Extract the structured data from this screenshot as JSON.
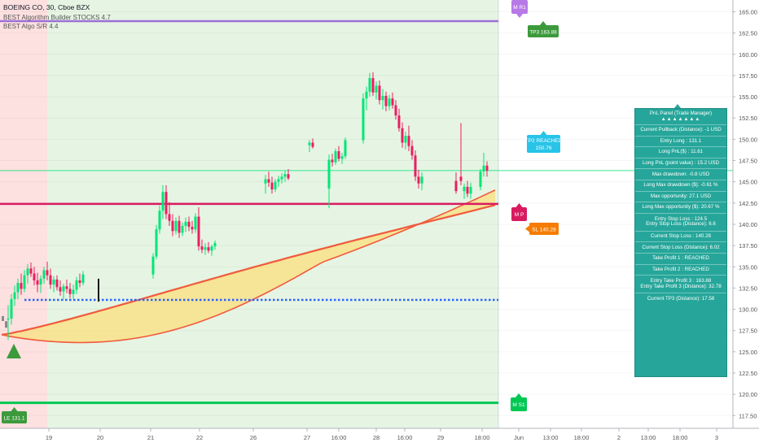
{
  "header": {
    "symbol_line": "BOEING CO, 30, Cboe BZX",
    "study_1": "BEST Algorithm Builder STOCKS 4.7",
    "study_2": "BEST Algo S/R 4.4"
  },
  "colors": {
    "bull": "#00e676",
    "bear": "#e91e63",
    "panel": "#26a69a",
    "cloud": "#f8e08a",
    "cloud_edge": "#f05a3c",
    "r1": "#9c6fd6",
    "pivot": "#d81b60",
    "s1": "#00c853",
    "entry_dots": "#2962ff",
    "price_line": "#00e676",
    "bg_green": "#e6f4e3",
    "bg_red": "#fde0e0"
  },
  "chart_data": {
    "type": "candlestick",
    "symbol": "BOEING CO",
    "interval": "30",
    "exchange": "Cboe BZX",
    "y_range": [
      116,
      166
    ],
    "y_ticks": [
      "117.50",
      "120.00",
      "122.50",
      "125.00",
      "127.50",
      "130.00",
      "132.50",
      "135.00",
      "137.50",
      "140.00",
      "142.50",
      "145.00",
      "147.50",
      "150.00",
      "152.50",
      "155.00",
      "157.50",
      "160.00",
      "162.50",
      "165.00"
    ],
    "x_ticks": [
      "19",
      "20",
      "21",
      "22",
      "26",
      "27",
      "16:00",
      "28",
      "16:00",
      "29",
      "18:00",
      "Jun",
      "13:00",
      "18:00",
      "2",
      "13:00",
      "18:00",
      "3"
    ],
    "last_price": "146.32",
    "levels": {
      "R1": 163.9,
      "pivot": 142.4,
      "S1": 119.0,
      "entry_dotted": 131.1
    },
    "labels": {
      "r1": "M R1",
      "pivot": "M P",
      "s1": "M S1",
      "tp3": "TP3 163.88",
      "tp2": "TP2 REACHED",
      "tp2_value": "150.76",
      "sl": "SL 140.28",
      "le": "LE 131.1"
    },
    "candles": [
      [
        128.8,
        130.5,
        126.4,
        128.9
      ],
      [
        128.9,
        131.8,
        128.2,
        131.2
      ],
      [
        131.2,
        132.8,
        130.4,
        132.0
      ],
      [
        132.0,
        133.6,
        131.2,
        133.1
      ],
      [
        133.1,
        134.2,
        131.7,
        132.4
      ],
      [
        132.4,
        134.6,
        132.0,
        134.0
      ],
      [
        134.0,
        135.3,
        133.0,
        134.8
      ],
      [
        134.8,
        135.5,
        133.8,
        134.2
      ],
      [
        134.2,
        135.0,
        132.8,
        133.4
      ],
      [
        133.4,
        134.3,
        132.0,
        132.9
      ],
      [
        132.9,
        134.0,
        131.9,
        133.6
      ],
      [
        133.6,
        135.0,
        133.0,
        134.6
      ],
      [
        134.6,
        135.6,
        133.4,
        134.0
      ],
      [
        134.0,
        134.8,
        132.4,
        132.9
      ],
      [
        132.9,
        133.9,
        132.0,
        133.5
      ],
      [
        133.5,
        134.0,
        132.2,
        132.6
      ],
      [
        132.6,
        133.4,
        131.6,
        132.1
      ],
      [
        132.1,
        133.0,
        131.2,
        132.7
      ],
      [
        132.7,
        133.5,
        131.9,
        132.4
      ],
      [
        132.4,
        133.1,
        131.3,
        131.8
      ],
      [
        131.8,
        132.9,
        131.2,
        132.3
      ],
      [
        132.3,
        133.8,
        131.8,
        133.4
      ],
      [
        133.4,
        134.2,
        132.6,
        133.1
      ],
      [
        133.1,
        134.5,
        132.8,
        134.1
      ],
      [
        134.1,
        136.6,
        133.6,
        136.2
      ],
      [
        136.2,
        139.9,
        135.9,
        139.4
      ],
      [
        139.4,
        142.2,
        138.9,
        141.6
      ],
      [
        141.6,
        144.6,
        140.6,
        143.8
      ],
      [
        143.8,
        144.6,
        140.6,
        141.2
      ],
      [
        141.2,
        142.6,
        139.8,
        140.4
      ],
      [
        140.4,
        141.2,
        138.6,
        139.2
      ],
      [
        139.2,
        140.8,
        138.8,
        140.4
      ],
      [
        140.4,
        141.0,
        138.4,
        139.0
      ],
      [
        139.0,
        140.2,
        138.6,
        139.8
      ],
      [
        139.8,
        140.8,
        139.1,
        140.3
      ],
      [
        140.3,
        140.9,
        139.2,
        139.7
      ],
      [
        139.7,
        140.4,
        138.9,
        139.4
      ],
      [
        139.4,
        141.3,
        139.0,
        140.9
      ],
      [
        140.9,
        142.0,
        136.9,
        137.4
      ],
      [
        137.4,
        138.2,
        136.6,
        137.0
      ],
      [
        137.0,
        137.8,
        136.4,
        137.3
      ],
      [
        137.3,
        137.9,
        136.6,
        136.9
      ],
      [
        136.9,
        137.6,
        136.3,
        137.4
      ],
      [
        137.4,
        138.1,
        137.0,
        137.8
      ],
      [
        144.8,
        145.8,
        143.6,
        145.3
      ],
      [
        145.3,
        146.2,
        144.4,
        144.9
      ],
      [
        144.9,
        145.6,
        143.6,
        144.1
      ],
      [
        144.1,
        145.3,
        143.8,
        145.0
      ],
      [
        145.0,
        145.7,
        144.4,
        145.3
      ],
      [
        145.3,
        146.0,
        144.8,
        145.6
      ],
      [
        145.6,
        146.3,
        145.0,
        145.9
      ],
      [
        145.9,
        146.5,
        145.2,
        145.4
      ],
      [
        149.3,
        149.9,
        148.5,
        149.6
      ],
      [
        149.6,
        150.1,
        148.9,
        149.1
      ],
      [
        144.2,
        148.2,
        141.9,
        147.6
      ],
      [
        147.6,
        148.3,
        146.8,
        147.3
      ],
      [
        147.3,
        148.9,
        147.0,
        148.6
      ],
      [
        148.6,
        149.2,
        147.4,
        147.7
      ],
      [
        147.7,
        148.4,
        147.1,
        148.0
      ],
      [
        148.0,
        150.2,
        147.7,
        149.9
      ],
      [
        149.9,
        155.4,
        149.5,
        154.8
      ],
      [
        154.8,
        156.2,
        153.4,
        155.6
      ],
      [
        155.6,
        157.8,
        155.0,
        157.2
      ],
      [
        157.2,
        157.9,
        155.1,
        155.5
      ],
      [
        155.5,
        156.8,
        154.7,
        156.3
      ],
      [
        156.3,
        156.9,
        154.1,
        154.6
      ],
      [
        154.6,
        155.9,
        153.5,
        155.1
      ],
      [
        155.1,
        155.6,
        153.3,
        153.9
      ],
      [
        153.9,
        155.2,
        153.4,
        154.8
      ],
      [
        154.8,
        155.5,
        153.6,
        154.0
      ],
      [
        154.0,
        154.6,
        152.3,
        152.8
      ],
      [
        152.8,
        153.6,
        150.9,
        151.3
      ],
      [
        151.3,
        152.0,
        149.0,
        149.6
      ],
      [
        149.6,
        150.9,
        148.8,
        150.4
      ],
      [
        150.4,
        151.6,
        148.6,
        149.2
      ],
      [
        149.2,
        149.9,
        147.6,
        148.1
      ],
      [
        148.1,
        148.7,
        145.1,
        145.6
      ],
      [
        145.6,
        146.4,
        144.2,
        144.8
      ],
      [
        144.8,
        146.1,
        144.0,
        145.6
      ],
      [
        145.6,
        151.9,
        144.6,
        145.1
      ],
      [
        145.1,
        146.1,
        143.6,
        143.9
      ],
      [
        143.9,
        144.8,
        143.0,
        144.4
      ],
      [
        144.4,
        145.1,
        143.2,
        143.6
      ],
      [
        143.6,
        144.9,
        143.0,
        144.4
      ],
      [
        144.4,
        146.5,
        144.0,
        146.2
      ],
      [
        146.2,
        148.4,
        145.6,
        146.9
      ],
      [
        146.9,
        147.4,
        145.6,
        146.3
      ]
    ],
    "x_slots": [
      10,
      14,
      18,
      22,
      26,
      30,
      34,
      38,
      42,
      46,
      50,
      54,
      58,
      62,
      66,
      70,
      74,
      78,
      82,
      86,
      90,
      94,
      98,
      102,
      188,
      192,
      196,
      200,
      204,
      208,
      212,
      216,
      220,
      224,
      228,
      232,
      236,
      240,
      244,
      248,
      252,
      256,
      260,
      264,
      326,
      330,
      334,
      338,
      342,
      346,
      350,
      354,
      380,
      384,
      404,
      408,
      412,
      416,
      420,
      424,
      446,
      450,
      454,
      458,
      462,
      466,
      470,
      474,
      478,
      482,
      486,
      490,
      494,
      498,
      502,
      506,
      510,
      514,
      518,
      566,
      560,
      570,
      574,
      578,
      590,
      594,
      598
    ]
  },
  "panel": {
    "title": "PnL Panel (Trade Manager)",
    "rows": [
      "Current Pullback (Distance): -1 USD",
      "Entry Long : 131.1",
      "Long PnL($) : 11.61",
      "Long PnL (point value) : 15.2 USD",
      "Max drawdown: -0.8 USD",
      "Long Max drawdown ($): -0.61 %",
      "Max opportunity: 27.1 USD",
      "Long Max opportunity ($): 20.67 %",
      "Entry Stop Loss : 124.5",
      "Entry Stop Loss (Distance): 6.6",
      "Current Stop Loss : 140.28",
      "Current Stop Loss (Distance): 6.02",
      "Take Profit 1 : REACHED",
      "Take Profit 2 : REACHED",
      "Entry Take Profit 3 : 163.88",
      "Entry Take Profit 3 (Distance): 32.78",
      "Current TP3 (Distance): 17.58"
    ]
  }
}
